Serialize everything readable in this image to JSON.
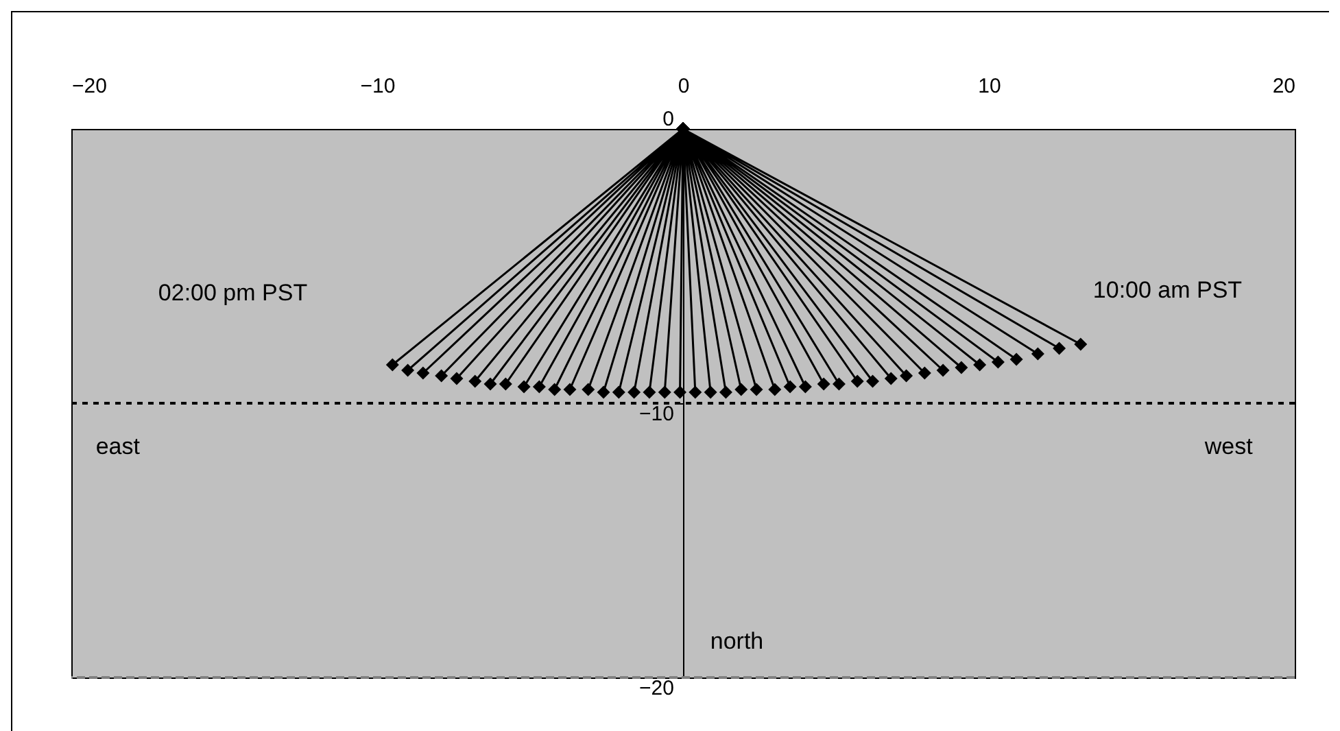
{
  "chart_data": {
    "type": "line",
    "marker": "diamond",
    "line_style": "solid",
    "grid": false,
    "x": [
      0,
      13.0,
      0,
      12.3,
      0,
      11.6,
      0,
      10.9,
      0,
      10.3,
      0,
      9.7,
      0,
      9.1,
      0,
      8.5,
      0,
      7.9,
      0,
      7.3,
      0,
      6.8,
      0,
      6.2,
      0,
      5.7,
      0,
      5.1,
      0,
      4.6,
      0,
      4.0,
      0,
      3.5,
      0,
      3.0,
      0,
      2.4,
      0,
      1.9,
      0,
      1.4,
      0,
      0.9,
      0,
      0.4,
      0,
      -0.1,
      0,
      -0.6,
      0,
      -1.1,
      0,
      -1.6,
      0,
      -2.1,
      0,
      -2.6,
      0,
      -3.1,
      0,
      -3.7,
      0,
      -4.2,
      0,
      -4.7,
      0,
      -5.2,
      0,
      -5.8,
      0,
      -6.3,
      0,
      -6.8,
      0,
      -7.4,
      0,
      -7.9,
      0,
      -8.5,
      0,
      -9.0,
      0,
      -9.5
    ],
    "series": [
      {
        "color": "#000000",
        "values": [
          0,
          -7.85,
          0,
          -8.0,
          0,
          -8.2,
          0,
          -8.4,
          0,
          -8.5,
          0,
          -8.6,
          0,
          -8.7,
          0,
          -8.8,
          0,
          -8.9,
          0,
          -9.0,
          0,
          -9.1,
          0,
          -9.2,
          0,
          -9.2,
          0,
          -9.3,
          0,
          -9.3,
          0,
          -9.4,
          0,
          -9.4,
          0,
          -9.5,
          0,
          -9.5,
          0,
          -9.5,
          0,
          -9.6,
          0,
          -9.6,
          0,
          -9.6,
          0,
          -9.6,
          0,
          -9.6,
          0,
          -9.6,
          0,
          -9.6,
          0,
          -9.6,
          0,
          -9.6,
          0,
          -9.5,
          0,
          -9.5,
          0,
          -9.5,
          0,
          -9.4,
          0,
          -9.4,
          0,
          -9.3,
          0,
          -9.3,
          0,
          -9.2,
          0,
          -9.1,
          0,
          -9.0,
          0,
          -8.9,
          0,
          -8.8,
          0,
          -8.6
        ]
      }
    ],
    "xlim": [
      -20,
      20
    ],
    "xticks": [
      -20,
      -10,
      0,
      10,
      20
    ],
    "ylim": [
      -20,
      0
    ],
    "yticks": [
      -20,
      -10,
      0
    ],
    "ref_lines": [
      {
        "axis": "y",
        "value": -10,
        "color": "#000000",
        "line_style": "dotted"
      },
      {
        "axis": "y",
        "value": -20,
        "color": "#808080",
        "line_style": "dashed"
      }
    ],
    "annotations": [
      "02:00 pm PST",
      "10:00 am PST",
      "east",
      "west",
      "north"
    ]
  }
}
